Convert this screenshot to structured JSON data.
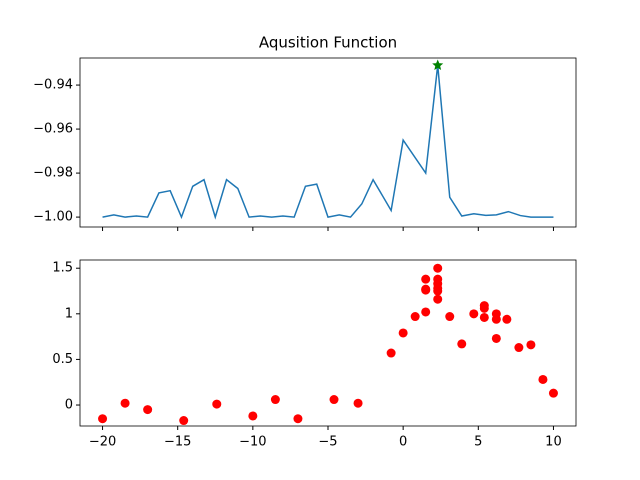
{
  "chart_data": [
    {
      "type": "line",
      "title": "Aqusition Function",
      "x": [
        -20,
        -19.25,
        -18.5,
        -17.75,
        -17,
        -16.25,
        -15.5,
        -14.75,
        -14,
        -13.25,
        -12.5,
        -11.75,
        -11,
        -10.25,
        -9.5,
        -8.75,
        -8,
        -7.25,
        -6.5,
        -5.75,
        -5,
        -4.25,
        -3.5,
        -2.75,
        -2,
        -0.8,
        0,
        1.5,
        2.3,
        3.1,
        3.9,
        4.7,
        5.5,
        6.2,
        7,
        7.8,
        8.5,
        9.3,
        10
      ],
      "series": [
        {
          "color": "#1f77b4",
          "values": [
            -1.0,
            -0.999,
            -1.0,
            -0.9995,
            -1.0,
            -0.989,
            -0.988,
            -1.0,
            -0.986,
            -0.983,
            -1.0,
            -0.983,
            -0.987,
            -1.0,
            -0.9995,
            -1.0,
            -0.9995,
            -1.0,
            -0.986,
            -0.985,
            -1.0,
            -0.999,
            -1.0,
            -0.994,
            -0.983,
            -0.997,
            -0.965,
            -0.98,
            -0.931,
            -0.991,
            -0.9995,
            -0.9985,
            -0.9992,
            -0.999,
            -0.9975,
            -0.9993,
            -1.0,
            -1.0,
            -1.0
          ]
        }
      ],
      "marker": {
        "x": 2.3,
        "y": -0.931,
        "color": "green"
      },
      "xlim": [
        -21.5,
        11.5
      ],
      "xticks": [
        -20,
        -15,
        -10,
        -5,
        0,
        5,
        10
      ],
      "xticklabels": false,
      "ylim": [
        -1.0045,
        -0.9277
      ],
      "yticks": [
        {
          "value": -1.0,
          "label": "−1.00"
        },
        {
          "value": -0.98,
          "label": "−0.98"
        },
        {
          "value": -0.96,
          "label": "−0.96"
        },
        {
          "value": -0.94,
          "label": "−0.94"
        }
      ]
    },
    {
      "type": "scatter",
      "x": [
        -20,
        -18.5,
        -17,
        -14.6,
        -12.4,
        -10,
        -8.5,
        -7,
        -4.6,
        -3,
        -0.8,
        0,
        0.8,
        1.5,
        1.5,
        1.5,
        1.5,
        2.3,
        2.3,
        2.3,
        2.3,
        2.3,
        2.3,
        3.1,
        3.9,
        4.7,
        5.4,
        5.4,
        5.4,
        6.2,
        6.2,
        6.2,
        6.9,
        7.7,
        8.5,
        9.3,
        10
      ],
      "values": [
        -0.15,
        0.02,
        -0.05,
        -0.17,
        0.01,
        -0.12,
        0.06,
        -0.15,
        0.06,
        0.02,
        0.57,
        0.79,
        0.97,
        1.38,
        1.27,
        1.26,
        1.02,
        1.5,
        1.38,
        1.33,
        1.28,
        1.25,
        1.16,
        0.97,
        0.67,
        1.0,
        1.09,
        1.06,
        0.96,
        1.0,
        0.94,
        0.73,
        0.94,
        0.63,
        0.66,
        0.28,
        0.13
      ],
      "color": "red",
      "xlim": [
        -21.5,
        11.5
      ],
      "xticks": [
        {
          "value": -20,
          "label": "−20"
        },
        {
          "value": -15,
          "label": "−15"
        },
        {
          "value": -10,
          "label": "−10"
        },
        {
          "value": -5,
          "label": "−5"
        },
        0,
        5,
        10
      ],
      "xticklabels": true,
      "ylim": [
        -0.23,
        1.59
      ],
      "yticks": [
        0.0,
        0.5,
        1.0,
        1.5
      ]
    }
  ]
}
